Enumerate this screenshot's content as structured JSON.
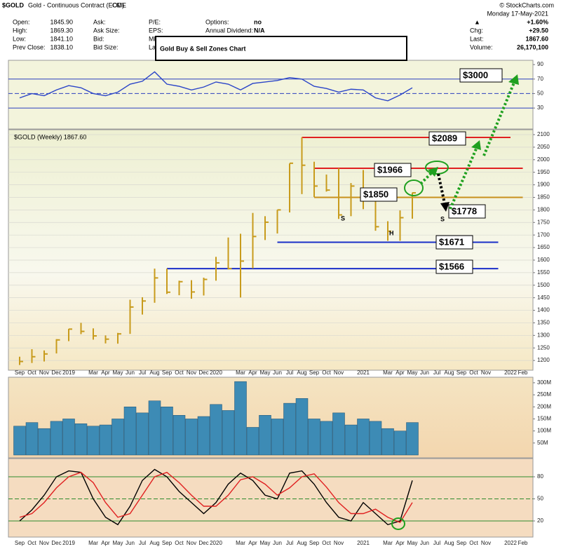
{
  "header": {
    "symbol": "$GOLD",
    "description": "Gold - Continuous Contract (EOD)",
    "exchange": "CME",
    "credit": "© StockCharts.com",
    "date": "Monday 17-May-2021",
    "change_arrow": "▲",
    "change_percent": "+1.60%",
    "col1": [
      [
        "Open:",
        "1845.90"
      ],
      [
        "High:",
        "1869.30"
      ],
      [
        "Low:",
        "1841.10"
      ],
      [
        "Prev Close:",
        "1838.10"
      ]
    ],
    "col2": [
      "Ask:",
      "Ask Size:",
      "Bid:",
      "Bid Size:"
    ],
    "col3": [
      "P/E:",
      "EPS:",
      "Mkt",
      "Las"
    ],
    "col4": [
      [
        "Options:",
        "no"
      ],
      [
        "Annual Dividend:",
        "N/A"
      ]
    ],
    "col5": [
      [
        "Chg:",
        "+29.50"
      ],
      [
        "Last:",
        "1867.60"
      ],
      [
        "Volume:",
        "26,170,100"
      ]
    ]
  },
  "title": "Gold Buy & Sell Zones Chart",
  "chart_data": [
    {
      "type": "line",
      "ylim": [
        2,
        94
      ],
      "yticks": [
        30,
        50,
        70,
        90
      ],
      "reference_lines": [
        70,
        50,
        30
      ],
      "reference_color": "#2b3fbf",
      "series": [
        {
          "color": "#2a44c8",
          "values": [
            44,
            50,
            47,
            55,
            61,
            58,
            50,
            47,
            52,
            63,
            67,
            80,
            63,
            60,
            55,
            59,
            66,
            63,
            55,
            64,
            66,
            68,
            72,
            70,
            60,
            57,
            52,
            56,
            55,
            44,
            40,
            48,
            58,
            null,
            null,
            null,
            null,
            null,
            null,
            null,
            null,
            null
          ]
        }
      ]
    },
    {
      "type": "ohlc",
      "label": "$GOLD (Weekly) 1867.60",
      "color": "#c89b1c",
      "grid": true,
      "categories": [
        "Sep",
        "Oct",
        "Nov",
        "Dec",
        "2019",
        null,
        "Mar",
        "Apr",
        "May",
        "Jun",
        "Jul",
        "Aug",
        "Sep",
        "Oct",
        "Nov",
        "Dec",
        "2020",
        null,
        "Mar",
        "Apr",
        "May",
        "Jun",
        "Jul",
        "Aug",
        "Sep",
        "Oct",
        "Nov",
        null,
        "2021",
        null,
        "Mar",
        "Apr",
        "May",
        "Jun",
        "Jul",
        "Aug",
        "Sep",
        "Oct",
        "Nov",
        null,
        "2022",
        "Feb"
      ],
      "ylim": [
        1178,
        2114
      ],
      "yticks": [
        1200,
        1250,
        1300,
        1350,
        1400,
        1450,
        1500,
        1550,
        1600,
        1650,
        1700,
        1750,
        1800,
        1850,
        1900,
        1950,
        2000,
        2050,
        2100
      ],
      "high": [
        1215,
        1245,
        1240,
        1285,
        1326,
        1350,
        1328,
        1300,
        1310,
        1442,
        1452,
        1566,
        1566,
        1518,
        1520,
        1530,
        1613,
        1690,
        1705,
        1788,
        1775,
        1800,
        1985,
        2089,
        1992,
        1941,
        1966,
        1907,
        1959,
        1875,
        1755,
        1798,
        1869,
        null,
        null,
        null,
        null,
        null,
        null,
        null,
        null,
        null
      ],
      "low": [
        1182,
        1190,
        1196,
        1228,
        1277,
        1305,
        1283,
        1268,
        1267,
        1306,
        1383,
        1430,
        1465,
        1460,
        1446,
        1459,
        1518,
        1563,
        1451,
        1567,
        1680,
        1706,
        1790,
        1863,
        1851,
        1873,
        1764,
        1775,
        1803,
        1717,
        1677,
        1677,
        1765,
        null,
        null,
        null,
        null,
        null,
        null,
        null,
        null,
        null
      ],
      "close": [
        1196,
        1215,
        1226,
        1282,
        1325,
        1316,
        1298,
        1285,
        1306,
        1413,
        1437,
        1529,
        1472,
        1514,
        1473,
        1523,
        1589,
        1566,
        1596,
        1694,
        1751,
        1800,
        1986,
        1978,
        1895,
        1879,
        1780,
        1895,
        1850,
        1733,
        1715,
        1769,
        1868,
        null,
        null,
        null,
        null,
        null,
        null,
        null,
        null,
        null
      ],
      "levels": [
        {
          "label": "$2089",
          "value": 2089,
          "color": "#e02020",
          "from": 23,
          "to": 40
        },
        {
          "label": "$1966",
          "value": 1966,
          "color": "#e02020",
          "from": 24,
          "to": 41
        },
        {
          "label": "$1850",
          "value": 1850,
          "color": "#c8901c",
          "from": 24,
          "to": 41
        },
        {
          "label": "$1671",
          "value": 1671,
          "color": "#1a2fc8",
          "from": 21,
          "to": 39
        },
        {
          "label": "$1566",
          "value": 1566,
          "color": "#1a2fc8",
          "from": 12,
          "to": 39
        }
      ],
      "annotations": [
        "$3000",
        "$1778",
        "S",
        "H",
        "S"
      ]
    },
    {
      "type": "bar",
      "color": "#3d8bb5",
      "ylim": [
        0,
        323000000
      ],
      "yticks": [
        {
          "value": 50000000,
          "label": "50M"
        },
        {
          "value": 100000000,
          "label": "100M"
        },
        {
          "value": 150000000,
          "label": "150M"
        },
        {
          "value": 200000000,
          "label": "200M"
        },
        {
          "value": 250000000,
          "label": "250M"
        },
        {
          "value": 300000000,
          "label": "300M"
        }
      ],
      "values": [
        120000000,
        135000000,
        110000000,
        140000000,
        150000000,
        130000000,
        120000000,
        125000000,
        150000000,
        200000000,
        175000000,
        225000000,
        200000000,
        165000000,
        150000000,
        160000000,
        210000000,
        185000000,
        305000000,
        115000000,
        165000000,
        150000000,
        215000000,
        235000000,
        150000000,
        140000000,
        175000000,
        125000000,
        150000000,
        140000000,
        110000000,
        100000000,
        135000000,
        null,
        null,
        null,
        null,
        null,
        null,
        null,
        null,
        null
      ]
    },
    {
      "type": "line",
      "ylim": [
        0,
        100
      ],
      "yticks": [
        20,
        50,
        80
      ],
      "reference_lines": [
        80,
        50,
        20
      ],
      "reference_color": "#2e8b2e",
      "categories": [
        "Sep",
        "Oct",
        "Nov",
        "Dec",
        "2019",
        null,
        "Mar",
        "Apr",
        "May",
        "Jun",
        "Jul",
        "Aug",
        "Sep",
        "Oct",
        "Nov",
        "Dec",
        "2020",
        null,
        "Mar",
        "Apr",
        "May",
        "Jun",
        "Jul",
        "Aug",
        "Sep",
        "Oct",
        "Nov",
        null,
        "2021",
        null,
        "Mar",
        "Apr",
        "May",
        "Jun",
        "Jul",
        "Aug",
        "Sep",
        "Oct",
        "Nov",
        null,
        "2022",
        "Feb"
      ],
      "series": [
        {
          "color": "#000000",
          "values": [
            20,
            35,
            55,
            80,
            88,
            86,
            50,
            25,
            15,
            40,
            75,
            90,
            80,
            60,
            45,
            30,
            45,
            70,
            85,
            75,
            55,
            50,
            85,
            88,
            70,
            45,
            25,
            20,
            45,
            30,
            15,
            20,
            75,
            null,
            null,
            null,
            null,
            null,
            null,
            null,
            null,
            null
          ]
        },
        {
          "color": "#e02020",
          "values": [
            25,
            30,
            45,
            65,
            80,
            86,
            72,
            45,
            25,
            30,
            55,
            80,
            86,
            72,
            55,
            40,
            40,
            55,
            76,
            80,
            70,
            55,
            65,
            80,
            84,
            66,
            45,
            30,
            30,
            36,
            25,
            18,
            45,
            null,
            null,
            null,
            null,
            null,
            null,
            null,
            null,
            null
          ]
        }
      ]
    }
  ]
}
